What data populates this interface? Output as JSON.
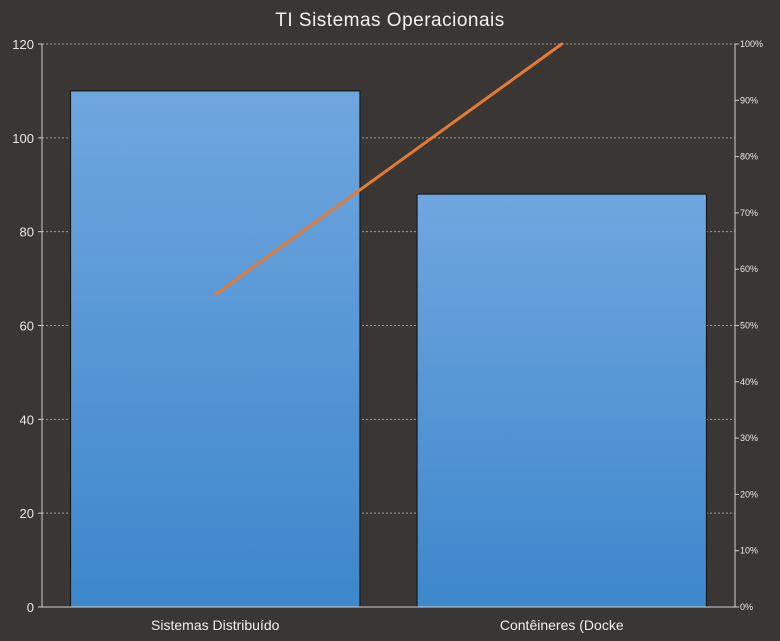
{
  "chart_data": {
    "type": "bar",
    "title": "TI Sistemas Operacionais",
    "categories": [
      "Sistemas Distribuído",
      "Contêineres (Docke"
    ],
    "series": [
      {
        "values": [
          110,
          88
        ]
      }
    ],
    "line_series": {
      "values": [
        55.5,
        100
      ]
    },
    "ylim": [
      0,
      120
    ],
    "y_ticks": [
      0,
      20,
      40,
      60,
      80,
      100,
      120
    ],
    "y2lim": [
      0,
      100
    ],
    "y2_ticks": [
      "0%",
      "10%",
      "20%",
      "30%",
      "40%",
      "50%",
      "60%",
      "70%",
      "80%",
      "90%",
      "100%"
    ],
    "grid": true,
    "colors": {
      "background": "#393634",
      "bar_top": "#6fa6df",
      "bar_bottom": "#3d87cb",
      "line": "#e47a34",
      "grid": "#9a9a9a"
    }
  }
}
